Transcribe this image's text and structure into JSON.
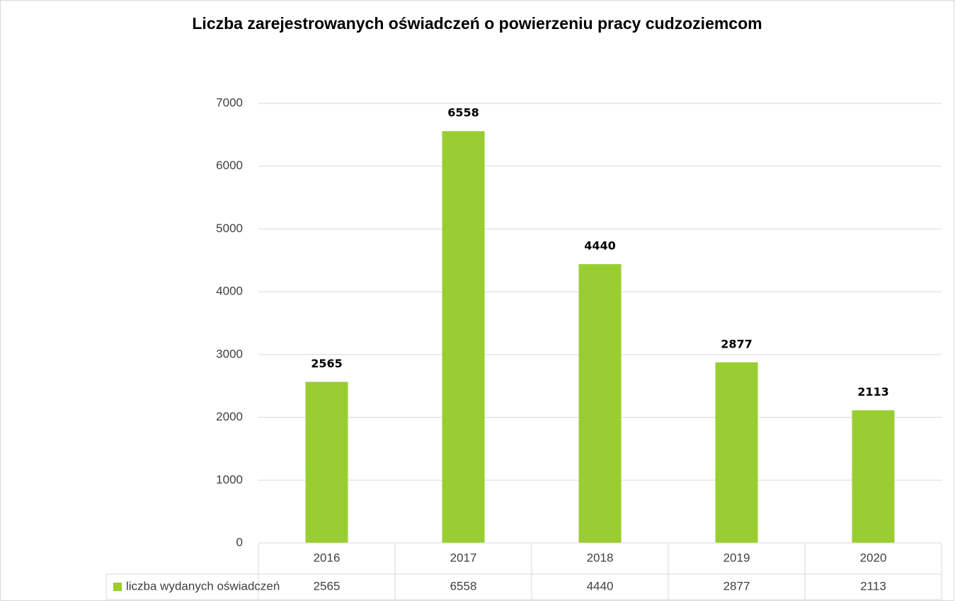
{
  "chart_data": {
    "type": "bar",
    "title": "Liczba zarejestrowanych oświadczeń o powierzeniu pracy cudzoziemcom",
    "categories": [
      "2016",
      "2017",
      "2018",
      "2019",
      "2020"
    ],
    "series": [
      {
        "name": "liczba wydanych oświadczeń",
        "color": "#9acd32",
        "values": [
          2565,
          6558,
          4440,
          2877,
          2113
        ]
      }
    ],
    "ylim": [
      0,
      7000
    ],
    "yticks": [
      0,
      1000,
      2000,
      3000,
      4000,
      5000,
      6000,
      7000
    ],
    "grid": true,
    "data_table": true
  }
}
